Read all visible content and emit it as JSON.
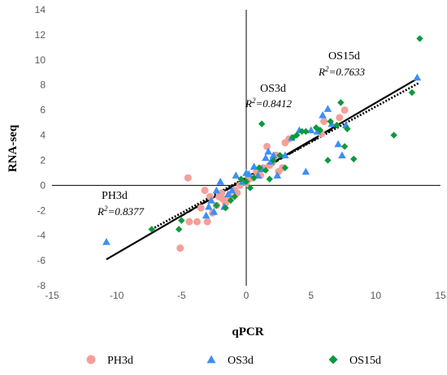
{
  "chart_data": {
    "type": "scatter",
    "xlabel": "qPCR",
    "ylabel": "RNA-seq",
    "xlim": [
      -15,
      15
    ],
    "ylim": [
      -8,
      14
    ],
    "xticks": [
      -15,
      -10,
      -5,
      0,
      5,
      10,
      15
    ],
    "yticks": [
      -8,
      -6,
      -4,
      -2,
      0,
      2,
      4,
      6,
      8,
      10,
      12,
      14
    ],
    "grid": false,
    "legend_position": "bottom",
    "colors": {
      "PH3d": "#f4a09a",
      "OS3d": "#3d8ef7",
      "OS15d": "#0b9a3c"
    },
    "annotations": [
      {
        "series": "PH3d",
        "label": "PH3d",
        "r2": "R2=0.8377"
      },
      {
        "series": "OS3d",
        "label": "OS3d",
        "r2": "R2=0.8412"
      },
      {
        "series": "OS15d",
        "label": "OS15d",
        "r2": "R2=0.7633"
      }
    ],
    "series": [
      {
        "name": "PH3d",
        "marker": "circle",
        "trendline": {
          "style": "solid",
          "x": [
            -10.8,
            13.2
          ],
          "y": [
            -5.9,
            8.5
          ]
        },
        "points": [
          [
            -5.1,
            -5.0
          ],
          [
            -4.5,
            0.6
          ],
          [
            -4.4,
            -2.9
          ],
          [
            -3.8,
            -2.9
          ],
          [
            -3.5,
            -1.8
          ],
          [
            -3.2,
            -0.4
          ],
          [
            -3.0,
            -2.9
          ],
          [
            -2.8,
            -0.9
          ],
          [
            -2.6,
            -2.2
          ],
          [
            -2.3,
            -1.6
          ],
          [
            -2.1,
            -0.9
          ],
          [
            -1.9,
            -0.6
          ],
          [
            -1.8,
            -1.1
          ],
          [
            -1.6,
            -1.4
          ],
          [
            -1.3,
            -0.9
          ],
          [
            -0.9,
            -0.4
          ],
          [
            -0.7,
            -0.6
          ],
          [
            -0.5,
            0.0
          ],
          [
            0.0,
            0.2
          ],
          [
            0.2,
            0.5
          ],
          [
            0.5,
            0.6
          ],
          [
            0.8,
            1.1
          ],
          [
            1.1,
            0.8
          ],
          [
            1.3,
            1.4
          ],
          [
            1.6,
            3.1
          ],
          [
            1.8,
            1.6
          ],
          [
            2.0,
            1.8
          ],
          [
            2.3,
            2.4
          ],
          [
            2.5,
            1.1
          ],
          [
            2.8,
            1.4
          ],
          [
            3.0,
            3.4
          ],
          [
            3.3,
            3.7
          ],
          [
            5.8,
            4.1
          ],
          [
            6.0,
            5.1
          ],
          [
            7.2,
            5.4
          ],
          [
            7.6,
            6.0
          ]
        ]
      },
      {
        "name": "OS3d",
        "marker": "triangle",
        "trendline": {
          "style": "dashed",
          "x": [
            -5.1,
            7.2
          ],
          "y": [
            -2.5,
            4.8
          ]
        },
        "points": [
          [
            -10.8,
            -4.5
          ],
          [
            -3.1,
            -2.4
          ],
          [
            -2.9,
            -1.7
          ],
          [
            -2.7,
            -1.2
          ],
          [
            -2.5,
            -2.1
          ],
          [
            -2.3,
            -0.4
          ],
          [
            -2.0,
            0.3
          ],
          [
            -1.7,
            -1.7
          ],
          [
            -1.4,
            -0.7
          ],
          [
            -1.1,
            -0.4
          ],
          [
            -0.8,
            0.8
          ],
          [
            -0.3,
            0.3
          ],
          [
            0.0,
            1.0
          ],
          [
            0.2,
            0.9
          ],
          [
            0.6,
            1.5
          ],
          [
            0.9,
            0.8
          ],
          [
            1.2,
            1.3
          ],
          [
            1.5,
            2.2
          ],
          [
            1.7,
            2.7
          ],
          [
            1.9,
            1.9
          ],
          [
            2.1,
            2.4
          ],
          [
            2.4,
            0.8
          ],
          [
            3.0,
            2.4
          ],
          [
            3.5,
            3.8
          ],
          [
            4.1,
            4.4
          ],
          [
            4.6,
            1.1
          ],
          [
            5.0,
            4.4
          ],
          [
            5.5,
            4.3
          ],
          [
            5.9,
            5.6
          ],
          [
            6.3,
            6.1
          ],
          [
            6.6,
            4.9
          ],
          [
            7.1,
            3.3
          ],
          [
            7.4,
            2.4
          ],
          [
            7.7,
            4.8
          ],
          [
            13.2,
            8.6
          ]
        ]
      },
      {
        "name": "OS15d",
        "marker": "diamond",
        "trendline": {
          "style": "dotted",
          "x": [
            -7.3,
            13.4
          ],
          "y": [
            -3.5,
            8.2
          ]
        },
        "points": [
          [
            -7.3,
            -3.5
          ],
          [
            -5.2,
            -3.5
          ],
          [
            -5.0,
            -2.8
          ],
          [
            -2.3,
            -1.6
          ],
          [
            -1.6,
            -1.8
          ],
          [
            -1.2,
            -1.2
          ],
          [
            -0.9,
            -0.9
          ],
          [
            -0.4,
            0.5
          ],
          [
            0.0,
            0.3
          ],
          [
            0.3,
            -0.2
          ],
          [
            0.6,
            0.6
          ],
          [
            1.0,
            1.4
          ],
          [
            1.2,
            4.9
          ],
          [
            1.5,
            1.2
          ],
          [
            1.8,
            0.5
          ],
          [
            2.1,
            2.0
          ],
          [
            2.6,
            2.4
          ],
          [
            3.0,
            1.4
          ],
          [
            3.6,
            3.8
          ],
          [
            3.9,
            4.0
          ],
          [
            4.3,
            4.3
          ],
          [
            4.6,
            4.3
          ],
          [
            5.4,
            4.6
          ],
          [
            5.7,
            4.4
          ],
          [
            6.3,
            2.0
          ],
          [
            6.5,
            5.1
          ],
          [
            7.0,
            4.8
          ],
          [
            7.3,
            6.6
          ],
          [
            7.6,
            3.1
          ],
          [
            7.8,
            4.5
          ],
          [
            8.3,
            2.1
          ],
          [
            11.4,
            4.0
          ],
          [
            12.8,
            7.4
          ],
          [
            13.4,
            11.7
          ]
        ]
      }
    ]
  }
}
